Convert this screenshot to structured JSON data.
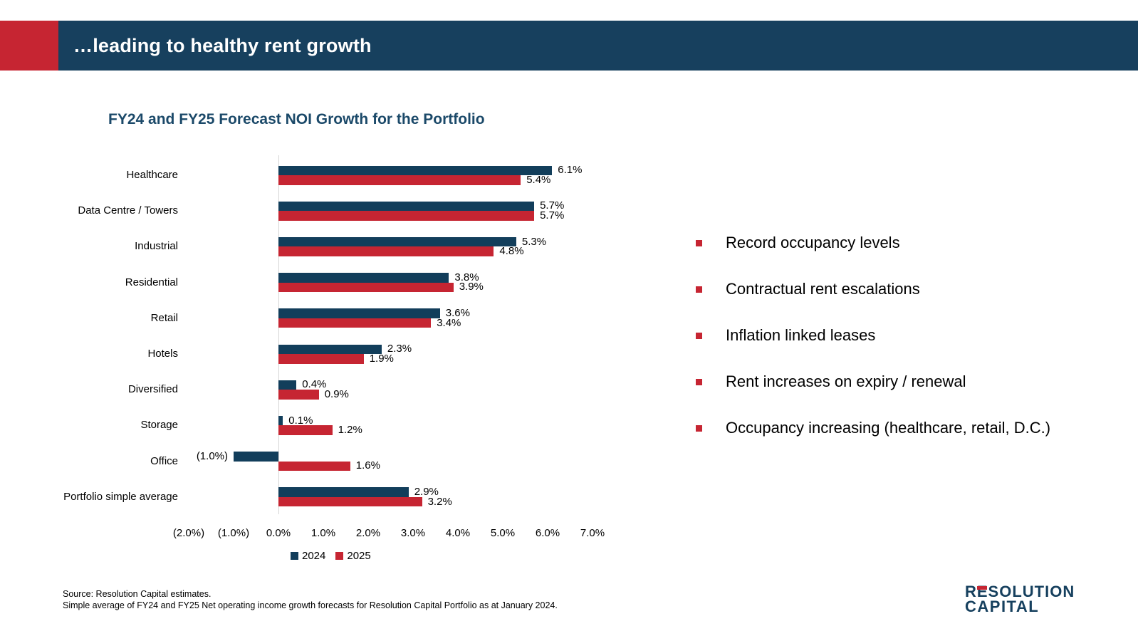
{
  "header": {
    "title": "…leading to healthy rent growth"
  },
  "chart_title": "FY24 and FY25 Forecast NOI Growth for the Portfolio",
  "chart_data": {
    "type": "bar",
    "orientation": "horizontal",
    "title": "FY24 and FY25 Forecast NOI Growth for the Portfolio",
    "categories": [
      "Healthcare",
      "Data Centre / Towers",
      "Industrial",
      "Residential",
      "Retail",
      "Hotels",
      "Diversified",
      "Storage",
      "Office",
      "Portfolio simple average"
    ],
    "series": [
      {
        "name": "2024",
        "color": "#123e5b",
        "values": [
          6.1,
          5.7,
          5.3,
          3.8,
          3.6,
          2.3,
          0.4,
          0.1,
          -1.0,
          2.9
        ],
        "labels": [
          "6.1%",
          "5.7%",
          "5.3%",
          "3.8%",
          "3.6%",
          "2.3%",
          "0.4%",
          "0.1%",
          "(1.0%)",
          "2.9%"
        ]
      },
      {
        "name": "2025",
        "color": "#c62532",
        "values": [
          5.4,
          5.7,
          4.8,
          3.9,
          3.4,
          1.9,
          0.9,
          1.2,
          1.6,
          3.2
        ],
        "labels": [
          "5.4%",
          "5.7%",
          "4.8%",
          "3.9%",
          "3.4%",
          "1.9%",
          "0.9%",
          "1.2%",
          "1.6%",
          "3.2%"
        ]
      }
    ],
    "xlim": [
      -2,
      7
    ],
    "x_ticks": [
      {
        "value": -2,
        "label": "(2.0%)"
      },
      {
        "value": -1,
        "label": "(1.0%)"
      },
      {
        "value": 0,
        "label": "0.0%"
      },
      {
        "value": 1,
        "label": "1.0%"
      },
      {
        "value": 2,
        "label": "2.0%"
      },
      {
        "value": 3,
        "label": "3.0%"
      },
      {
        "value": 4,
        "label": "4.0%"
      },
      {
        "value": 5,
        "label": "5.0%"
      },
      {
        "value": 6,
        "label": "6.0%"
      },
      {
        "value": 7,
        "label": "7.0%"
      }
    ],
    "legend": [
      "2024",
      "2025"
    ],
    "legend_position": "bottom",
    "grid": "none"
  },
  "bullets": [
    "Record occupancy levels",
    "Contractual rent escalations",
    "Inflation linked leases",
    "Rent increases on expiry / renewal",
    "Occupancy increasing (healthcare, retail, D.C.)"
  ],
  "footer": {
    "source_line1": "Source: Resolution Capital estimates.",
    "source_line2": "Simple average of FY24 and FY25 Net operating income growth forecasts for Resolution Capital Portfolio as at January 2024."
  },
  "logo": {
    "line1": "RESOLUTION",
    "line2": "CAPITAL"
  },
  "colors": {
    "navy": "#123e5b",
    "red": "#c62532",
    "header_navy": "#17405e",
    "title_navy": "#1b4969",
    "axis_gray": "#d6d6d6",
    "logo_navy": "#16405e"
  }
}
